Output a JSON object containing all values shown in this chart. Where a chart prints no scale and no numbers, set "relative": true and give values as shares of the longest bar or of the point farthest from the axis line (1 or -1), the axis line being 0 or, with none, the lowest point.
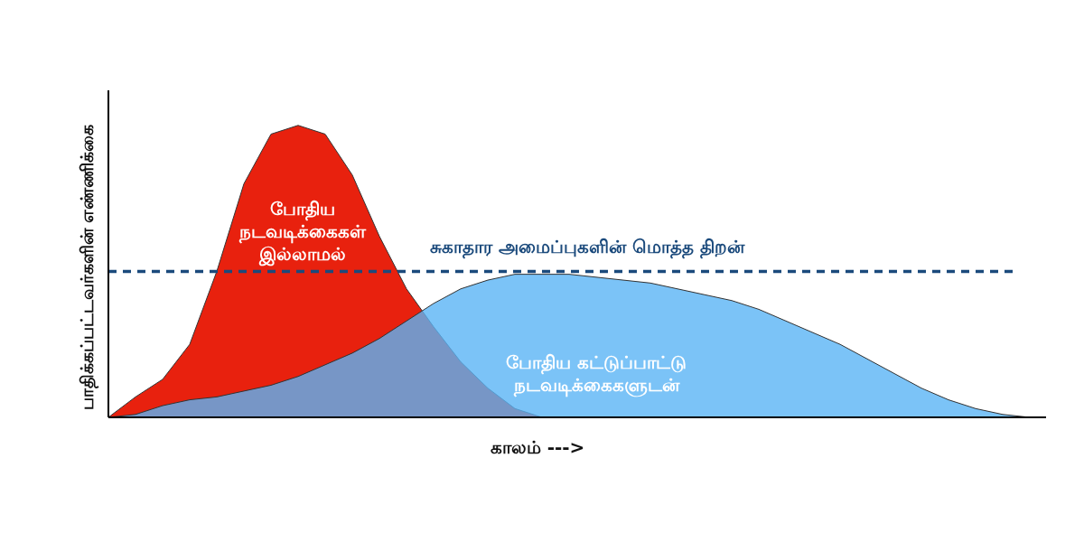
{
  "chart_data": {
    "type": "area",
    "relative": true,
    "legend": false,
    "xlabel": "காலம் --->",
    "ylabel": "பாதிக்கப்பட்டவர்களின் எண்ணிக்கை",
    "categories": [
      null,
      null,
      null,
      null,
      null,
      null,
      null,
      null,
      null,
      null,
      null,
      null,
      null,
      null,
      null,
      null,
      null,
      null,
      null,
      null,
      null,
      null,
      null,
      null,
      null,
      null,
      null,
      null,
      null,
      null,
      null,
      null,
      null,
      null,
      null
    ],
    "series": [
      {
        "name": "போதிய\nநடவடிக்கைகள்\nஇல்லாமல்",
        "color": "#e8210e",
        "values": [
          0,
          0.07,
          0.13,
          0.25,
          0.5,
          0.8,
          0.97,
          1.0,
          0.97,
          0.83,
          0.62,
          0.44,
          0.31,
          0.19,
          0.1,
          0.03,
          0,
          null,
          null,
          null,
          null,
          null,
          null,
          null,
          null,
          null,
          null,
          null,
          null,
          null,
          null,
          null,
          null,
          null,
          null
        ]
      },
      {
        "name": "போதிய கட்டுப்பாட்டு\nநடவடிக்கைகளுடன்",
        "color": "#5ab4f5",
        "values": [
          0,
          0.01,
          0.04,
          0.06,
          0.07,
          0.09,
          0.11,
          0.14,
          0.18,
          0.22,
          0.27,
          0.33,
          0.39,
          0.44,
          0.47,
          0.49,
          0.49,
          0.49,
          0.48,
          0.47,
          0.46,
          0.44,
          0.42,
          0.4,
          0.37,
          0.33,
          0.29,
          0.25,
          0.2,
          0.15,
          0.1,
          0.06,
          0.03,
          0.01,
          0
        ]
      }
    ],
    "ref_lines": [
      {
        "axis": "y",
        "value": 0.5,
        "label": "சுகாதார அமைப்புகளின் மொத்த திறன்",
        "color": "#1b4a7c",
        "line_style": "dashed"
      }
    ]
  }
}
